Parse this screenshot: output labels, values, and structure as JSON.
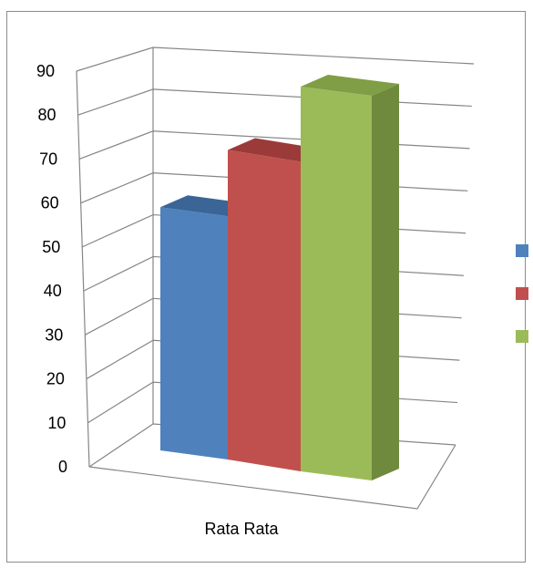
{
  "chart_data": {
    "type": "bar",
    "style": "3d-clustered-column",
    "categories": [
      "Rata Rata"
    ],
    "series": [
      {
        "values": [
          55
        ],
        "color": "#4f81bd",
        "side_color": "#385d8a",
        "top_color": "#3a6596"
      },
      {
        "values": [
          70
        ],
        "color": "#c0504d",
        "side_color": "#8c3836",
        "top_color": "#9b3b39"
      },
      {
        "values": [
          87
        ],
        "color": "#9bbb59",
        "side_color": "#6f8a3c",
        "top_color": "#7f9e45"
      }
    ],
    "ylim": [
      0,
      90
    ],
    "yticks": [
      "0",
      "10",
      "20",
      "30",
      "40",
      "50",
      "60",
      "70",
      "80",
      "90"
    ],
    "xlabel": "",
    "ylabel": "",
    "title": "",
    "grid": true,
    "legend": "right"
  }
}
